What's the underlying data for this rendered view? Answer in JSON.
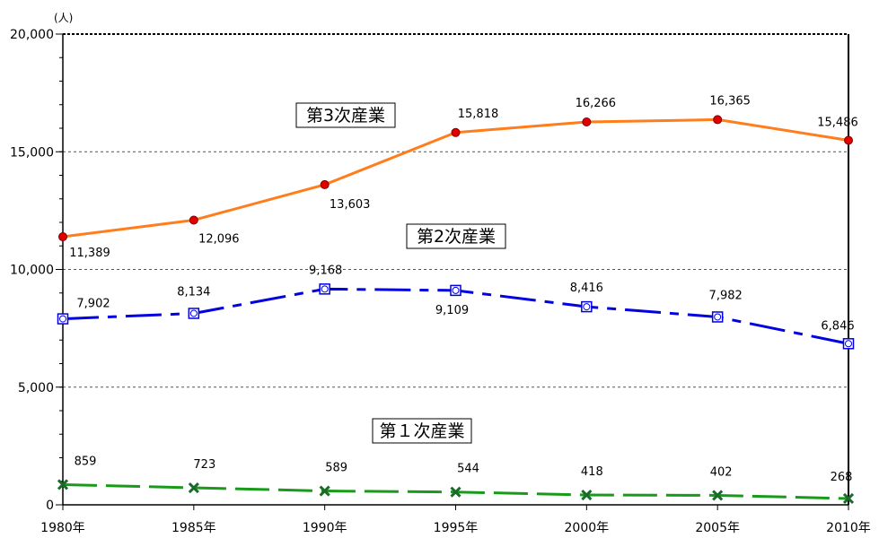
{
  "chart_data": {
    "type": "line",
    "unit": "(人)",
    "categories": [
      "1980年",
      "1985年",
      "1990年",
      "1995年",
      "2000年",
      "2005年",
      "2010年"
    ],
    "ylim": [
      0,
      20000
    ],
    "yticks": [
      "0",
      "5,000",
      "10,000",
      "15,000",
      "20,000"
    ],
    "grid": true,
    "series": [
      {
        "name": "第3次産業",
        "values": [
          11389,
          12096,
          13603,
          15818,
          16266,
          16365,
          15486
        ],
        "labels": [
          "11,389",
          "12,096",
          "13,603",
          "15,818",
          "16,266",
          "16,365",
          "15,486"
        ],
        "line_color": "#ff7d1a",
        "marker_color": "#e00000",
        "line_style": "solid",
        "marker": "circle"
      },
      {
        "name": "第2次産業",
        "values": [
          7902,
          8134,
          9168,
          9109,
          8416,
          7982,
          6846
        ],
        "labels": [
          "7,902",
          "8,134",
          "9,168",
          "9,109",
          "8,416",
          "7,982",
          "6,846"
        ],
        "line_color": "#0000e0",
        "marker_color": "#0000e0",
        "line_style": "dash",
        "marker": "square-circle"
      },
      {
        "name": "第１次産業",
        "values": [
          859,
          723,
          589,
          544,
          418,
          402,
          268
        ],
        "labels": [
          "859",
          "723",
          "589",
          "544",
          "418",
          "402",
          "268"
        ],
        "line_color": "#1a9a1a",
        "marker_color": "#1a6a2a",
        "line_style": "dash",
        "marker": "x"
      }
    ]
  }
}
